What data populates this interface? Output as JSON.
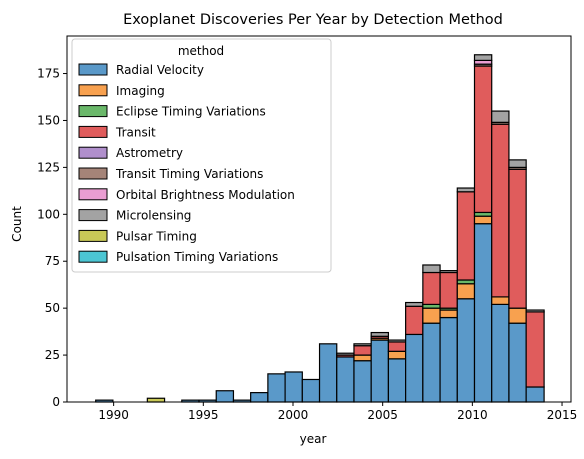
{
  "chart_data": {
    "type": "bar",
    "stacked": true,
    "title": "Exoplanet Discoveries Per Year by Detection Method",
    "xlabel": "year",
    "ylabel": "Count",
    "xlim": [
      1987.4,
      2015.5
    ],
    "ylim": [
      0,
      195
    ],
    "x_ticks": [
      1990,
      1995,
      2000,
      2005,
      2010,
      2015
    ],
    "y_ticks": [
      0,
      25,
      50,
      75,
      100,
      125,
      150,
      175
    ],
    "legend": {
      "title": "method",
      "placement": "top-left"
    },
    "bins": [
      {
        "start": 1989.0,
        "end": 1989.96
      },
      {
        "start": 1989.96,
        "end": 1990.92
      },
      {
        "start": 1990.92,
        "end": 1991.88
      },
      {
        "start": 1991.88,
        "end": 1992.84
      },
      {
        "start": 1992.84,
        "end": 1993.8
      },
      {
        "start": 1993.8,
        "end": 1994.76
      },
      {
        "start": 1994.76,
        "end": 1995.72
      },
      {
        "start": 1995.72,
        "end": 1996.68
      },
      {
        "start": 1996.68,
        "end": 1997.64
      },
      {
        "start": 1997.64,
        "end": 1998.6
      },
      {
        "start": 1998.6,
        "end": 1999.56
      },
      {
        "start": 1999.56,
        "end": 2000.52
      },
      {
        "start": 2000.52,
        "end": 2001.48
      },
      {
        "start": 2001.48,
        "end": 2002.44
      },
      {
        "start": 2002.44,
        "end": 2003.4
      },
      {
        "start": 2003.4,
        "end": 2004.36
      },
      {
        "start": 2004.36,
        "end": 2005.32
      },
      {
        "start": 2005.32,
        "end": 2006.28
      },
      {
        "start": 2006.28,
        "end": 2007.24
      },
      {
        "start": 2007.24,
        "end": 2008.2
      },
      {
        "start": 2008.2,
        "end": 2009.16
      },
      {
        "start": 2009.16,
        "end": 2010.12
      },
      {
        "start": 2010.12,
        "end": 2011.08
      },
      {
        "start": 2011.08,
        "end": 2012.04
      },
      {
        "start": 2012.04,
        "end": 2013.0
      },
      {
        "start": 2013.0,
        "end": 2014.0
      }
    ],
    "series": [
      {
        "name": "Radial Velocity",
        "color": "#5a99c9",
        "values": [
          1,
          0,
          0,
          0,
          0,
          1,
          1,
          6,
          1,
          5,
          15,
          16,
          12,
          31,
          24,
          22,
          33,
          23,
          36,
          42,
          45,
          55,
          95,
          52,
          42,
          8
        ]
      },
      {
        "name": "Imaging",
        "color": "#f8a14f",
        "values": [
          0,
          0,
          0,
          0,
          0,
          0,
          0,
          0,
          0,
          0,
          0,
          0,
          0,
          0,
          0,
          3,
          1,
          4,
          0,
          8,
          4,
          8,
          4,
          4,
          8,
          0
        ]
      },
      {
        "name": "Eclipse Timing Variations",
        "color": "#6ab86a",
        "values": [
          0,
          0,
          0,
          0,
          0,
          0,
          0,
          0,
          0,
          0,
          0,
          0,
          0,
          0,
          0,
          0,
          0,
          0,
          0,
          2,
          1,
          2,
          2,
          0,
          0,
          0
        ]
      },
      {
        "name": "Transit",
        "color": "#e05c5c",
        "values": [
          0,
          0,
          0,
          0,
          0,
          0,
          0,
          0,
          0,
          0,
          0,
          0,
          0,
          0,
          1,
          5,
          1,
          5,
          15,
          17,
          19,
          47,
          78,
          92,
          74,
          40
        ]
      },
      {
        "name": "Astrometry",
        "color": "#b08fcc",
        "values": [
          0,
          0,
          0,
          0,
          0,
          0,
          0,
          0,
          0,
          0,
          0,
          0,
          0,
          0,
          0,
          0,
          0,
          0,
          0,
          0,
          0,
          0,
          0,
          0,
          0,
          0
        ]
      },
      {
        "name": "Transit Timing Variations",
        "color": "#a58478",
        "values": [
          0,
          0,
          0,
          0,
          0,
          0,
          0,
          0,
          0,
          0,
          0,
          0,
          0,
          0,
          0,
          0,
          0,
          0,
          0,
          0,
          0,
          0,
          1,
          1,
          1,
          0
        ]
      },
      {
        "name": "Orbital Brightness Modulation",
        "color": "#ea9dd2",
        "values": [
          0,
          0,
          0,
          0,
          0,
          0,
          0,
          0,
          0,
          0,
          0,
          0,
          0,
          0,
          0,
          0,
          0,
          0,
          0,
          0,
          0,
          0,
          2,
          0,
          0,
          0
        ]
      },
      {
        "name": "Microlensing",
        "color": "#a3a3a3",
        "values": [
          0,
          0,
          0,
          0,
          0,
          0,
          0,
          0,
          0,
          0,
          0,
          0,
          0,
          0,
          1,
          1,
          2,
          1,
          2,
          4,
          1,
          2,
          3,
          6,
          4,
          1
        ]
      },
      {
        "name": "Pulsar Timing",
        "color": "#c9c957",
        "values": [
          0,
          0,
          0,
          2,
          0,
          0,
          0,
          0,
          0,
          0,
          0,
          0,
          0,
          0,
          0,
          0,
          0,
          0,
          0,
          0,
          0,
          0,
          0,
          0,
          0,
          0
        ]
      },
      {
        "name": "Pulsation Timing Variations",
        "color": "#4cc6d3",
        "values": [
          0,
          0,
          0,
          0,
          0,
          0,
          0,
          0,
          0,
          0,
          0,
          0,
          0,
          0,
          0,
          0,
          0,
          0,
          0,
          0,
          0,
          0,
          0,
          0,
          0,
          0
        ]
      }
    ]
  }
}
